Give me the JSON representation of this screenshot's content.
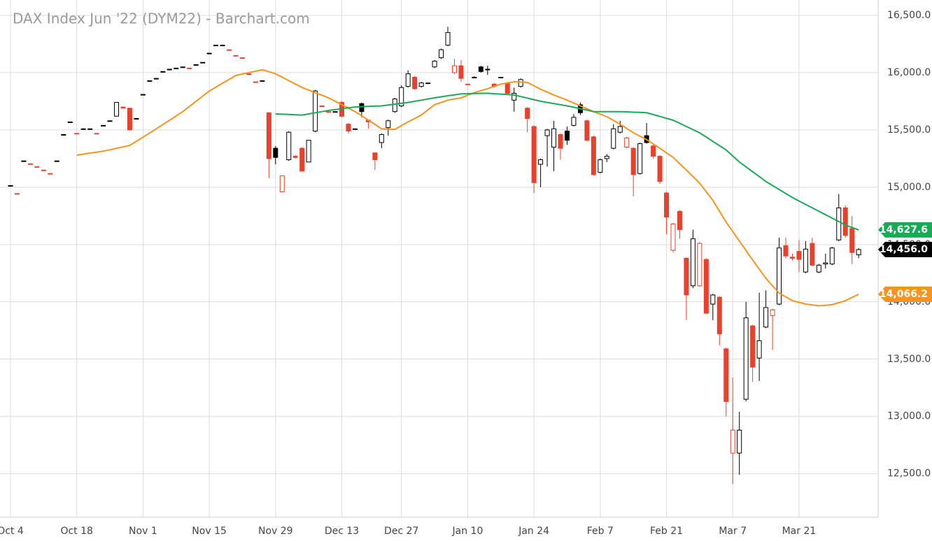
{
  "chart_data": {
    "type": "candlestick",
    "title": "DAX Index Jun '22 (DYM22) - Barchart.com",
    "categories": [
      "Oct 4",
      null,
      null,
      null,
      null,
      null,
      null,
      null,
      null,
      null,
      "Oct 18",
      null,
      null,
      null,
      null,
      null,
      null,
      null,
      null,
      null,
      "Nov 1",
      null,
      null,
      null,
      null,
      null,
      null,
      null,
      null,
      null,
      "Nov 15",
      null,
      null,
      null,
      null,
      null,
      null,
      null,
      null,
      null,
      "Nov 29",
      null,
      null,
      null,
      null,
      null,
      null,
      null,
      null,
      null,
      "Dec 13",
      null,
      null,
      null,
      null,
      null,
      null,
      null,
      null,
      "Dec 27",
      null,
      null,
      null,
      null,
      null,
      null,
      null,
      null,
      null,
      "Jan 10",
      null,
      null,
      null,
      null,
      null,
      null,
      null,
      null,
      null,
      "Jan 24",
      null,
      null,
      null,
      null,
      null,
      null,
      null,
      null,
      null,
      "Feb 7",
      null,
      null,
      null,
      null,
      null,
      null,
      null,
      null,
      null,
      "Feb 21",
      null,
      null,
      null,
      null,
      null,
      null,
      null,
      null,
      null,
      "Mar 7",
      null,
      null,
      null,
      null,
      null,
      null,
      null,
      null,
      null,
      "Mar 21",
      null,
      null,
      null,
      null,
      null,
      null,
      null,
      null,
      null
    ],
    "ohlc": [
      [
        15015,
        15015,
        15015,
        15015
      ],
      [
        14945,
        14945,
        14945,
        14945
      ],
      [
        15230,
        15230,
        15230,
        15230
      ],
      [
        15205,
        15205,
        15205,
        15205
      ],
      [
        15180,
        15180,
        15180,
        15180
      ],
      [
        15150,
        15150,
        15150,
        15150
      ],
      [
        15120,
        15120,
        15120,
        15120
      ],
      [
        15230,
        15230,
        15230,
        15230
      ],
      [
        15460,
        15460,
        15460,
        15460
      ],
      [
        15570,
        15570,
        15570,
        15570
      ],
      [
        15470,
        15470,
        15470,
        15470
      ],
      [
        15510,
        15510,
        15510,
        15510
      ],
      [
        15510,
        15510,
        15510,
        15510
      ],
      [
        15470,
        15470,
        15470,
        15470
      ],
      [
        15540,
        15540,
        15540,
        15540
      ],
      [
        15580,
        15580,
        15580,
        15580
      ],
      [
        15620,
        15740,
        15620,
        15740
      ],
      [
        15700,
        15700,
        15690,
        15690
      ],
      [
        15690,
        15690,
        15500,
        15500
      ],
      [
        15600,
        15600,
        15600,
        15600
      ],
      [
        15810,
        15810,
        15810,
        15810
      ],
      [
        15930,
        15930,
        15930,
        15930
      ],
      [
        15950,
        15950,
        15950,
        15950
      ],
      [
        16010,
        16010,
        16010,
        16010
      ],
      [
        16030,
        16030,
        16030,
        16030
      ],
      [
        16040,
        16040,
        16040,
        16040
      ],
      [
        16050,
        16050,
        16050,
        16050
      ],
      [
        16040,
        16040,
        16040,
        16040
      ],
      [
        16070,
        16070,
        16070,
        16070
      ],
      [
        16090,
        16090,
        16090,
        16090
      ],
      [
        16170,
        16170,
        16170,
        16170
      ],
      [
        16240,
        16240,
        16240,
        16240
      ],
      [
        16240,
        16240,
        16240,
        16240
      ],
      [
        16200,
        16200,
        16200,
        16200
      ],
      [
        16150,
        16150,
        16150,
        16150
      ],
      [
        16130,
        16130,
        16130,
        16130
      ],
      [
        15990,
        15990,
        15990,
        15990
      ],
      [
        15920,
        15920,
        15920,
        15920
      ],
      [
        15930,
        15930,
        15930,
        15930
      ],
      [
        15650,
        15650,
        15080,
        15250
      ],
      [
        15340,
        15360,
        15200,
        15260
      ],
      [
        14960,
        15100,
        14960,
        15100
      ],
      [
        15240,
        15490,
        15230,
        15480
      ],
      [
        15270,
        15280,
        15250,
        15260
      ],
      [
        15340,
        15350,
        15140,
        15140
      ],
      [
        15220,
        15410,
        15220,
        15410
      ],
      [
        15490,
        15850,
        15480,
        15840
      ],
      [
        15710,
        15710,
        15710,
        15710
      ],
      [
        15660,
        15660,
        15660,
        15660
      ],
      [
        15660,
        15660,
        15660,
        15660
      ],
      [
        15740,
        15750,
        15610,
        15620
      ],
      [
        15550,
        15560,
        15470,
        15490
      ],
      [
        15510,
        15510,
        15510,
        15510
      ],
      [
        15730,
        15740,
        15610,
        15660
      ],
      [
        15585,
        15590,
        15510,
        15570
      ],
      [
        15300,
        15300,
        15150,
        15240
      ],
      [
        15390,
        15470,
        15340,
        15460
      ],
      [
        15520,
        15590,
        15450,
        15580
      ],
      [
        15660,
        15780,
        15650,
        15770
      ],
      [
        15710,
        15890,
        15700,
        15870
      ],
      [
        15880,
        16020,
        15870,
        15990
      ],
      [
        15960,
        15970,
        15850,
        15860
      ],
      [
        15880,
        15920,
        15870,
        15910
      ],
      [
        15910,
        15910,
        15910,
        15910
      ],
      [
        16050,
        16110,
        16040,
        16100
      ],
      [
        16130,
        16210,
        16120,
        16200
      ],
      [
        16240,
        16400,
        16230,
        16350
      ],
      [
        16000,
        16120,
        15990,
        16060
      ],
      [
        16060,
        16110,
        15920,
        15950
      ],
      [
        15900,
        15900,
        15900,
        15900
      ],
      [
        15960,
        15970,
        15950,
        15960
      ],
      [
        16050,
        16060,
        16000,
        16010
      ],
      [
        16030,
        16060,
        15980,
        16030
      ],
      [
        15900,
        15910,
        15870,
        15880
      ],
      [
        15960,
        15960,
        15960,
        15960
      ],
      [
        15910,
        15920,
        15810,
        15820
      ],
      [
        15760,
        15870,
        15660,
        15820
      ],
      [
        15880,
        15950,
        15870,
        15940
      ],
      [
        15690,
        15700,
        15480,
        15600
      ],
      [
        15530,
        15540,
        14950,
        15040
      ],
      [
        15200,
        15250,
        15000,
        15240
      ],
      [
        15450,
        15510,
        15180,
        15500
      ],
      [
        15350,
        15580,
        15140,
        15510
      ],
      [
        15460,
        15470,
        15240,
        15340
      ],
      [
        15490,
        15530,
        15370,
        15410
      ],
      [
        15540,
        15640,
        15530,
        15610
      ],
      [
        15720,
        15740,
        15630,
        15650
      ],
      [
        15580,
        15590,
        15400,
        15410
      ],
      [
        15440,
        15450,
        15100,
        15110
      ],
      [
        15130,
        15250,
        15120,
        15240
      ],
      [
        15250,
        15290,
        15220,
        15270
      ],
      [
        15340,
        15550,
        15330,
        15510
      ],
      [
        15480,
        15580,
        15470,
        15530
      ],
      [
        15350,
        15440,
        15340,
        15430
      ],
      [
        15340,
        15350,
        14920,
        15110
      ],
      [
        15120,
        15390,
        15110,
        15380
      ],
      [
        15450,
        15560,
        15380,
        15390
      ],
      [
        15360,
        15380,
        15250,
        15270
      ],
      [
        15270,
        15280,
        15030,
        15050
      ],
      [
        14950,
        14960,
        14590,
        14740
      ],
      [
        14450,
        14690,
        14430,
        14680
      ],
      [
        14790,
        14800,
        14550,
        14630
      ],
      [
        14380,
        14390,
        13840,
        14060
      ],
      [
        14140,
        14630,
        14120,
        14550
      ],
      [
        14140,
        14520,
        14130,
        14510
      ],
      [
        14370,
        14380,
        13900,
        13900
      ],
      [
        13980,
        14070,
        13840,
        14060
      ],
      [
        14040,
        14050,
        13620,
        13720
      ],
      [
        13590,
        13600,
        13000,
        13130
      ],
      [
        12680,
        13340,
        12410,
        12880
      ],
      [
        12680,
        13040,
        12490,
        12880
      ],
      [
        13150,
        14000,
        13130,
        13860
      ],
      [
        13790,
        13800,
        13300,
        13430
      ],
      [
        13510,
        14080,
        13310,
        13660
      ],
      [
        13780,
        14100,
        13770,
        13950
      ],
      [
        13880,
        13940,
        13580,
        13930
      ],
      [
        13980,
        14560,
        13970,
        14470
      ],
      [
        14490,
        14560,
        14380,
        14400
      ],
      [
        14390,
        14420,
        14360,
        14380
      ],
      [
        14440,
        14540,
        14260,
        14370
      ],
      [
        14260,
        14530,
        14250,
        14460
      ],
      [
        14510,
        14560,
        14310,
        14320
      ],
      [
        14260,
        14330,
        14250,
        14320
      ],
      [
        14330,
        14420,
        14290,
        14340
      ],
      [
        14330,
        14480,
        14320,
        14470
      ],
      [
        14540,
        14940,
        14530,
        14820
      ],
      [
        14820,
        14840,
        14560,
        14580
      ],
      [
        14640,
        14750,
        14330,
        14430
      ],
      [
        14410,
        14470,
        14380,
        14456
      ]
    ],
    "close_label": "14,456.0",
    "up_color": "#000000",
    "down_color": "#e8412c",
    "badge_color": "#000000",
    "series": [
      {
        "color": "#f7931e",
        "last_value_label": "14,066.2",
        "values": [
          null,
          null,
          null,
          null,
          null,
          null,
          null,
          null,
          null,
          null,
          15280,
          15289,
          15298,
          15306,
          15315,
          15327,
          15340,
          15352,
          15365,
          15401,
          15437,
          15474,
          15510,
          15547,
          15585,
          15622,
          15660,
          15705,
          15750,
          15795,
          15840,
          15874,
          15908,
          15941,
          15975,
          15988,
          16000,
          16013,
          16025,
          16008,
          15990,
          15960,
          15930,
          15900,
          15870,
          15848,
          15825,
          15803,
          15780,
          15750,
          15720,
          15690,
          15660,
          15623,
          15585,
          15548,
          15510,
          15507,
          15505,
          15538,
          15570,
          15600,
          15630,
          15675,
          15720,
          15740,
          15760,
          15770,
          15780,
          15803,
          15825,
          15843,
          15860,
          15880,
          15900,
          15910,
          15920,
          15918,
          15915,
          15885,
          15855,
          15830,
          15805,
          15783,
          15760,
          15735,
          15710,
          15685,
          15660,
          15638,
          15615,
          15583,
          15550,
          15513,
          15475,
          15445,
          15415,
          15378,
          15340,
          15300,
          15260,
          15205,
          15150,
          15093,
          15035,
          14960,
          14885,
          14790,
          14695,
          14613,
          14530,
          14448,
          14365,
          14285,
          14205,
          14140,
          14075,
          14043,
          14010,
          13995,
          13980,
          13973,
          13965,
          13970,
          13975,
          13993,
          14010,
          14038,
          14066.2
        ]
      },
      {
        "color": "#1aaa55",
        "last_value_label": "14,627.6",
        "values": [
          null,
          null,
          null,
          null,
          null,
          null,
          null,
          null,
          null,
          null,
          null,
          null,
          null,
          null,
          null,
          null,
          null,
          null,
          null,
          null,
          null,
          null,
          null,
          null,
          null,
          null,
          null,
          null,
          null,
          null,
          null,
          null,
          null,
          null,
          null,
          null,
          null,
          null,
          null,
          null,
          15640,
          15637,
          15635,
          15632,
          15630,
          15640,
          15650,
          15660,
          15670,
          15678,
          15685,
          15693,
          15700,
          15703,
          15705,
          15708,
          15710,
          15718,
          15725,
          15733,
          15740,
          15750,
          15760,
          15770,
          15780,
          15789,
          15798,
          15806,
          15815,
          15816,
          15818,
          15819,
          15820,
          15816,
          15813,
          15809,
          15805,
          15791,
          15778,
          15764,
          15750,
          15740,
          15730,
          15720,
          15710,
          15698,
          15685,
          15673,
          15660,
          15660,
          15660,
          15660,
          15660,
          15658,
          15655,
          15653,
          15650,
          15634,
          15618,
          15601,
          15585,
          15558,
          15530,
          15503,
          15475,
          15438,
          15400,
          15363,
          15325,
          15273,
          15220,
          15178,
          15135,
          15093,
          15050,
          15015,
          14980,
          14945,
          14910,
          14880,
          14850,
          14820,
          14790,
          14760,
          14730,
          14700,
          14670,
          14649,
          14627.6
        ]
      }
    ],
    "ylim": [
      12120,
      16634
    ],
    "yticks": [
      {
        "value": 12500,
        "label": "12,500.0"
      },
      {
        "value": 13000,
        "label": "13,000.0"
      },
      {
        "value": 13500,
        "label": "13,500.0"
      },
      {
        "value": 14000,
        "label": "14,000.0"
      },
      {
        "value": 14500,
        "label": "14,500.0"
      },
      {
        "value": 15000,
        "label": "15,000.0"
      },
      {
        "value": 15500,
        "label": "15,500.0"
      },
      {
        "value": 16000,
        "label": "16,000.0"
      },
      {
        "value": 16500,
        "label": "16,500.0"
      }
    ],
    "grid": true
  }
}
